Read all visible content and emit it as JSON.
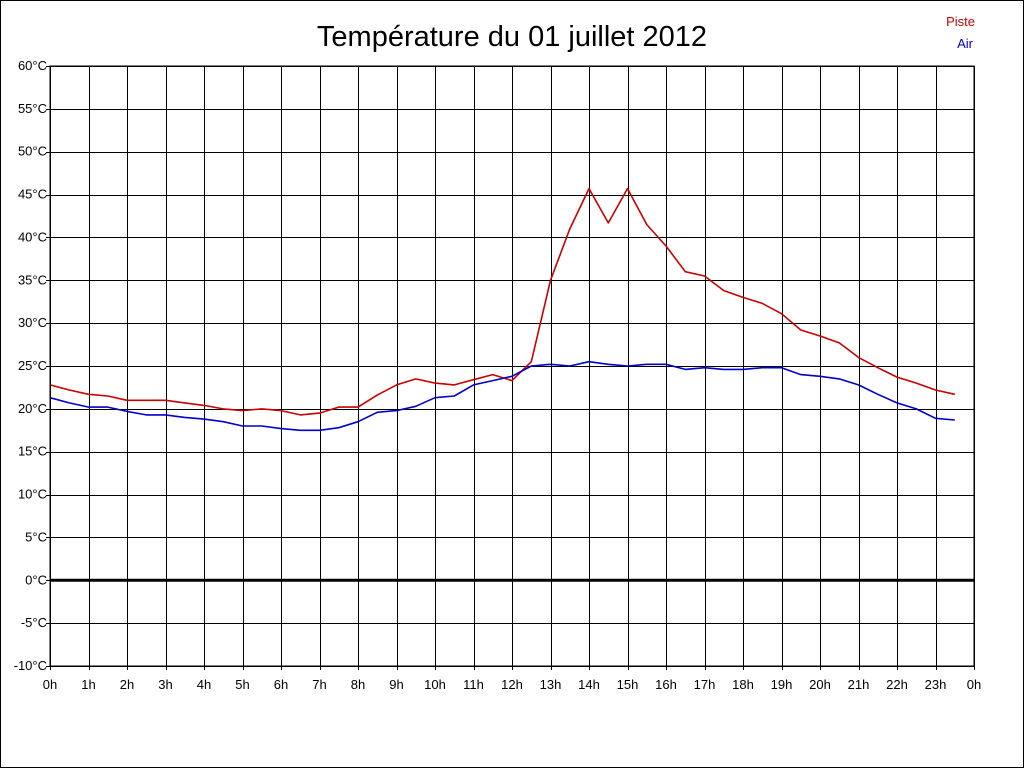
{
  "chart_data": {
    "type": "line",
    "title": "Température du 01 juillet 2012",
    "xlabel": "",
    "ylabel": "",
    "xlim": [
      0,
      24
    ],
    "ylim": [
      -10,
      60
    ],
    "y_ticks": [
      -10,
      -5,
      0,
      5,
      10,
      15,
      20,
      25,
      30,
      35,
      40,
      45,
      50,
      55,
      60
    ],
    "y_tick_labels": [
      "-10°C",
      "-5°C",
      "0°C",
      "5°C",
      "10°C",
      "15°C",
      "20°C",
      "25°C",
      "30°C",
      "35°C",
      "40°C",
      "45°C",
      "50°C",
      "55°C",
      "60°C"
    ],
    "x_ticks": [
      0,
      1,
      2,
      3,
      4,
      5,
      6,
      7,
      8,
      9,
      10,
      11,
      12,
      13,
      14,
      15,
      16,
      17,
      18,
      19,
      20,
      21,
      22,
      23,
      24
    ],
    "x_tick_labels": [
      "0h",
      "1h",
      "2h",
      "3h",
      "4h",
      "5h",
      "6h",
      "7h",
      "8h",
      "9h",
      "10h",
      "11h",
      "12h",
      "13h",
      "14h",
      "15h",
      "16h",
      "17h",
      "18h",
      "19h",
      "20h",
      "21h",
      "22h",
      "23h",
      "0h"
    ],
    "grid": true,
    "legend_position": "top-right",
    "zero_line": 0,
    "series": [
      {
        "name": "Piste",
        "color": "#cc0000",
        "x": [
          0,
          0.5,
          1,
          1.5,
          2,
          2.5,
          3,
          3.5,
          4,
          4.5,
          5,
          5.5,
          6,
          6.5,
          7,
          7.5,
          8,
          8.5,
          9,
          9.5,
          10,
          10.5,
          11,
          11.5,
          12,
          12.5,
          13,
          13.5,
          14,
          14.5,
          15,
          15.5,
          16,
          16.5,
          17,
          17.5,
          18,
          18.5,
          19,
          19.5,
          20,
          20.5,
          21,
          21.5,
          22,
          22.5,
          23,
          23.5
        ],
        "values": [
          22.8,
          22.2,
          21.7,
          21.5,
          21.0,
          21.0,
          21.0,
          20.7,
          20.4,
          20.0,
          19.8,
          20.0,
          19.8,
          19.3,
          19.5,
          20.2,
          20.2,
          21.6,
          22.8,
          23.5,
          23.0,
          22.8,
          23.4,
          24.0,
          23.3,
          25.5,
          35.0,
          41.0,
          45.7,
          41.7,
          45.7,
          41.5,
          39.0,
          36.0,
          35.5,
          33.8,
          33.0,
          32.3,
          31.1,
          29.2,
          28.5,
          27.7,
          26.0,
          24.8,
          23.7,
          23.0,
          22.2,
          21.7
        ]
      },
      {
        "name": "Air",
        "color": "#0000cc",
        "x": [
          0,
          0.5,
          1,
          1.5,
          2,
          2.5,
          3,
          3.5,
          4,
          4.5,
          5,
          5.5,
          6,
          6.5,
          7,
          7.5,
          8,
          8.5,
          9,
          9.5,
          10,
          10.5,
          11,
          11.5,
          12,
          12.5,
          13,
          13.5,
          14,
          14.5,
          15,
          15.5,
          16,
          16.5,
          17,
          17.5,
          18,
          18.5,
          19,
          19.5,
          20,
          20.5,
          21,
          21.5,
          22,
          22.5,
          23,
          23.5
        ],
        "values": [
          21.3,
          20.7,
          20.2,
          20.2,
          19.7,
          19.3,
          19.3,
          19.0,
          18.8,
          18.5,
          18.0,
          18.0,
          17.7,
          17.5,
          17.5,
          17.8,
          18.5,
          19.6,
          19.8,
          20.3,
          21.3,
          21.5,
          22.8,
          23.3,
          23.8,
          25.0,
          25.2,
          25.0,
          25.5,
          25.2,
          25.0,
          25.2,
          25.2,
          24.6,
          24.8,
          24.6,
          24.6,
          24.8,
          24.8,
          24.0,
          23.8,
          23.5,
          22.8,
          21.7,
          20.7,
          20.0,
          18.9,
          18.7
        ]
      }
    ]
  }
}
